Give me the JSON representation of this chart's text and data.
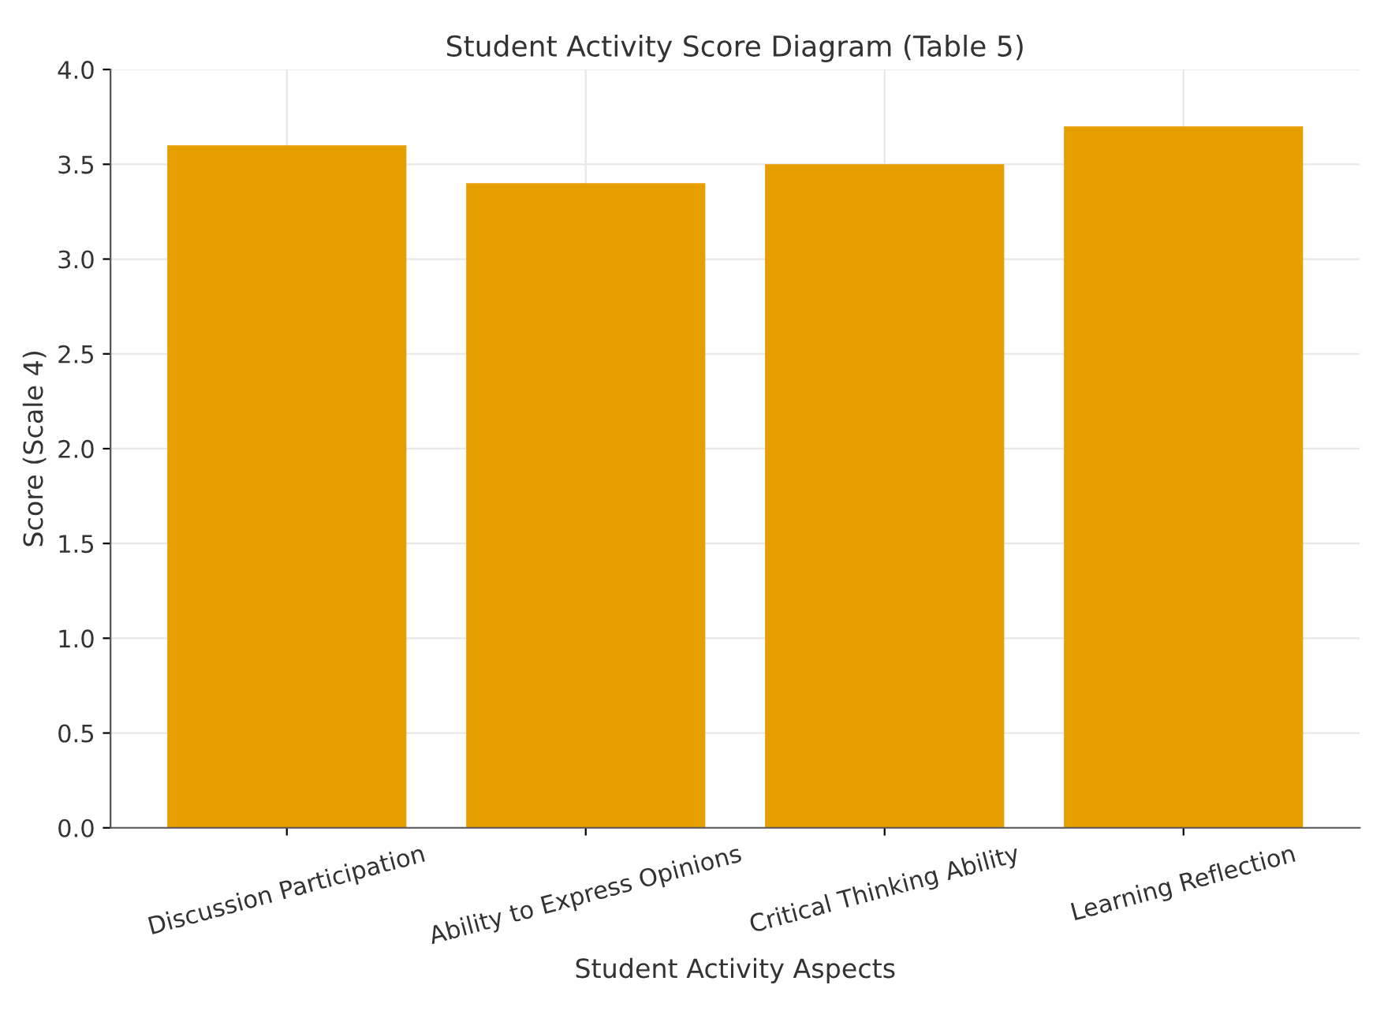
{
  "chart_data": {
    "type": "bar",
    "title": "Student Activity Score Diagram (Table 5)",
    "xlabel": "Student Activity Aspects",
    "ylabel": "Score (Scale 4)",
    "categories": [
      "Discussion Participation",
      "Ability to Express Opinions",
      "Critical Thinking Ability",
      "Learning Reflection"
    ],
    "values": [
      3.6,
      3.4,
      3.5,
      3.7
    ],
    "color": "#e69f00",
    "ylim": [
      0,
      4
    ],
    "yticks": [
      {
        "value": 0,
        "label": "0.0"
      },
      {
        "value": 0.5,
        "label": "0.5"
      },
      {
        "value": 1,
        "label": "1.0"
      },
      {
        "value": 1.5,
        "label": "1.5"
      },
      {
        "value": 2,
        "label": "2.0"
      },
      {
        "value": 2.5,
        "label": "2.5"
      },
      {
        "value": 3,
        "label": "3.0"
      },
      {
        "value": 3.5,
        "label": "3.5"
      },
      {
        "value": 4,
        "label": "4.0"
      }
    ],
    "grid": true
  }
}
